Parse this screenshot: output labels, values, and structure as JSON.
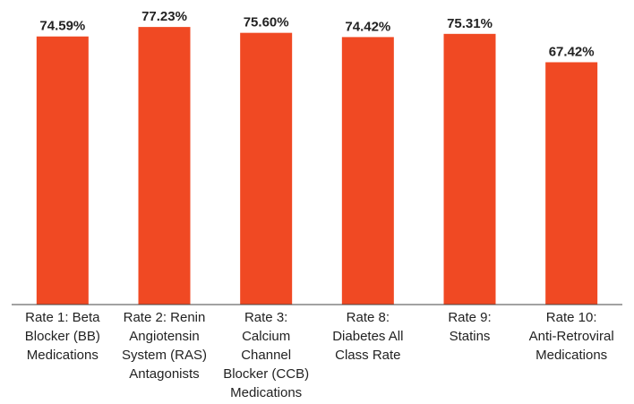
{
  "chart_data": {
    "type": "bar",
    "categories": [
      "Rate 1: Beta\nBlocker (BB)\nMedications",
      "Rate 2: Renin\nAngiotensin\nSystem (RAS)\nAntagonists",
      "Rate 3:\nCalcium\nChannel\nBlocker (CCB)\nMedications",
      "Rate 8:\nDiabetes All\nClass Rate",
      "Rate 9:\nStatins",
      "Rate 10:\nAnti-Retroviral\nMedications"
    ],
    "values": [
      74.59,
      77.23,
      75.6,
      74.42,
      75.31,
      67.42
    ],
    "value_labels": [
      "74.59%",
      "77.23%",
      "75.60%",
      "74.42%",
      "75.31%",
      "67.42%"
    ],
    "color": "#f04923",
    "ylim": [
      0,
      80
    ]
  }
}
